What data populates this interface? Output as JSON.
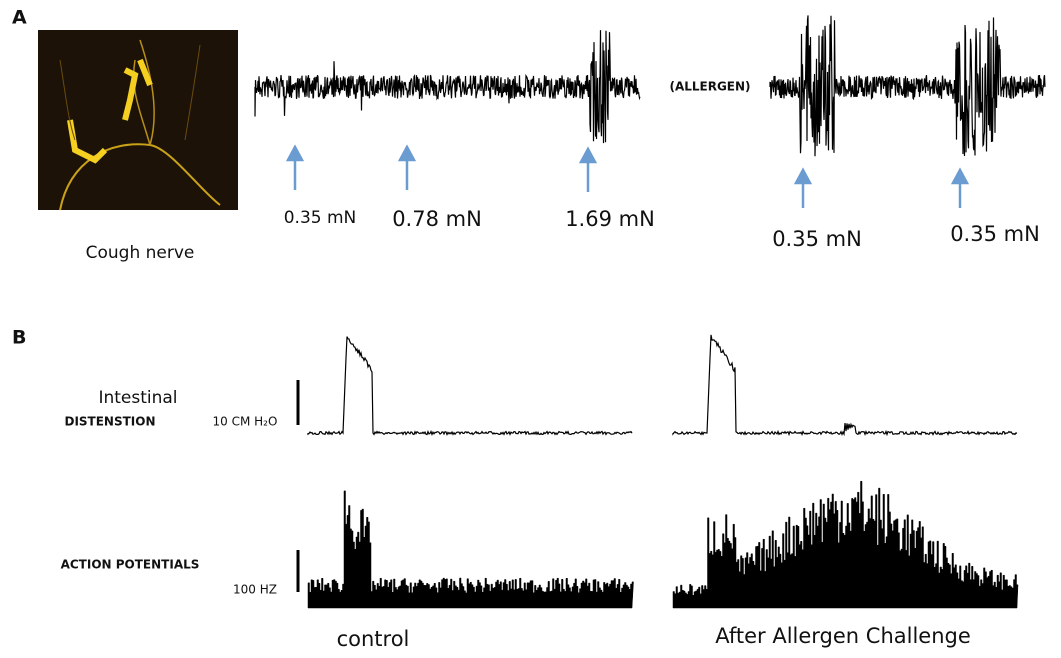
{
  "panel_a": {
    "label": "A",
    "image_caption": "Cough nerve",
    "condition": "(ALLERGEN)",
    "stimuli_before": [
      "0.35 mN",
      "0.78 mN",
      "1.69 mN"
    ],
    "stimuli_after": [
      "0.35 mN",
      "0.35 mN"
    ]
  },
  "panel_b": {
    "label": "B",
    "row1_label": "Intestinal",
    "row1_label_bold": "DISTENSTION",
    "row1_scale": "10 CM H₂O",
    "row2_label": "ACTION POTENTIALS",
    "row2_scale": "100 HZ",
    "left_caption": "control",
    "right_caption": "After Allergen Challenge"
  }
}
